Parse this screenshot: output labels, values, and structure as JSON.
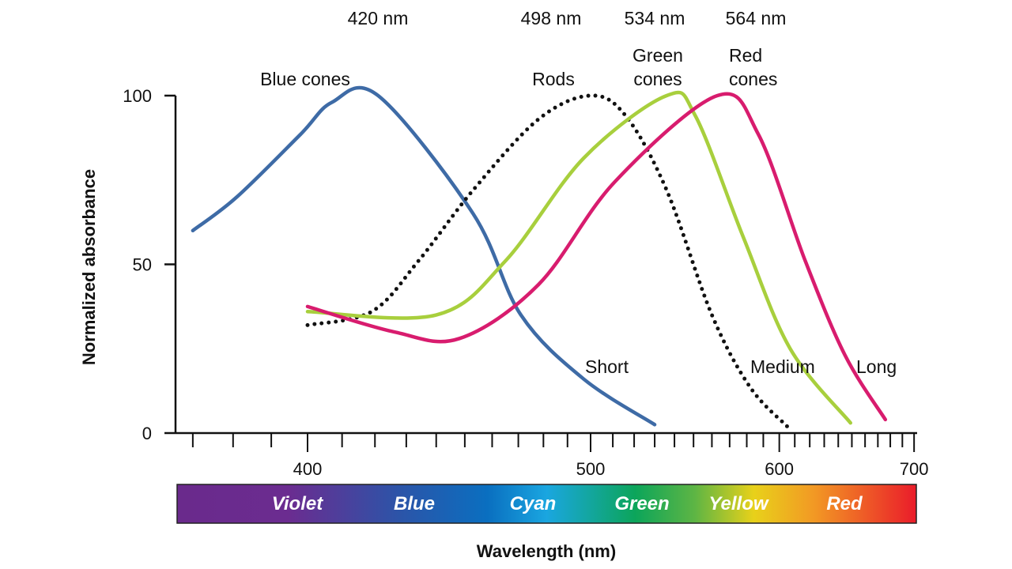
{
  "chart_data": {
    "type": "line",
    "xlabel": "Wavelength (nm)",
    "ylabel": "Normalized absorbance",
    "x_scale": "reciprocal",
    "xlim": [
      366,
      700
    ],
    "ylim": [
      0,
      100
    ],
    "x_ticks": [
      400,
      500,
      600,
      700
    ],
    "x_minor_tick_step": 10,
    "y_ticks": [
      0,
      50,
      100
    ],
    "grid": false,
    "series": [
      {
        "name": "Blue cones",
        "peak_label": "420 nm",
        "range_label": "Short",
        "color": "#3e6ba6",
        "style": "solid",
        "x": [
          370,
          381,
          398,
          407,
          421,
          453,
          471,
          497,
          530
        ],
        "y": [
          60,
          70,
          88.5,
          98,
          100,
          65,
          35,
          16,
          2.5
        ]
      },
      {
        "name": "Rods",
        "peak_label": "498 nm",
        "color": "#111111",
        "style": "dotted",
        "x": [
          400,
          419,
          434,
          453,
          478,
          500,
          516,
          536,
          560,
          582,
          605
        ],
        "y": [
          32,
          36,
          51,
          72,
          93,
          100,
          94,
          72,
          35,
          13.6,
          2
        ]
      },
      {
        "name": "Green cones",
        "peak_label": "534 nm",
        "range_label": "Medium",
        "color": "#a8cf3d",
        "style": "solid",
        "x": [
          400,
          440,
          465,
          497,
          536,
          551,
          578,
          607,
          649
        ],
        "y": [
          36,
          35,
          51,
          81.5,
          100,
          94,
          58,
          25,
          3
        ]
      },
      {
        "name": "Red cones",
        "peak_label": "564 nm",
        "range_label": "Long",
        "color": "#d81c6e",
        "style": "solid",
        "x": [
          400,
          426,
          448,
          478,
          511,
          563,
          587,
          617,
          645,
          676
        ],
        "y": [
          37.5,
          30,
          28,
          44,
          74.5,
          100,
          88.5,
          51,
          23,
          4
        ]
      }
    ],
    "spectrum_bands": [
      "Violet",
      "Blue",
      "Cyan",
      "Green",
      "Yellow",
      "Red"
    ]
  }
}
